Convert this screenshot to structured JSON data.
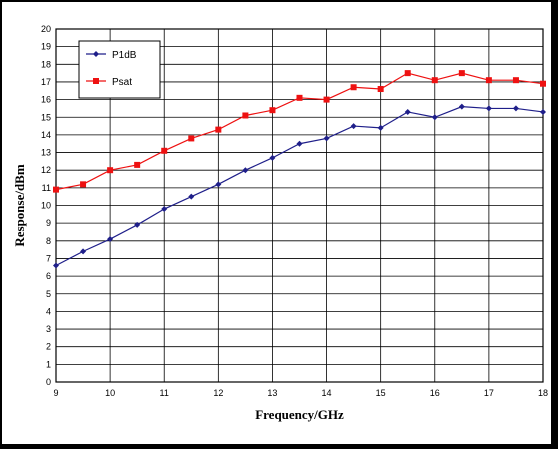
{
  "chart_data": {
    "type": "line",
    "title": "",
    "xlabel": "Frequency/GHz",
    "ylabel": "Response/dBm",
    "xlim": [
      9,
      18
    ],
    "ylim": [
      0,
      20
    ],
    "x_ticks": [
      "9",
      "10",
      "11",
      "12",
      "13",
      "14",
      "15",
      "16",
      "17",
      "18"
    ],
    "y_ticks": [
      "0",
      "1",
      "2",
      "3",
      "4",
      "5",
      "6",
      "7",
      "8",
      "9",
      "10",
      "11",
      "12",
      "13",
      "14",
      "15",
      "16",
      "17",
      "18",
      "19",
      "20"
    ],
    "grid": true,
    "legend_position": "top-left",
    "x": [
      9,
      9.5,
      10,
      10.5,
      11,
      11.5,
      12,
      12.5,
      13,
      13.5,
      14,
      14.5,
      15,
      15.5,
      16,
      16.5,
      17,
      17.5,
      18
    ],
    "series": [
      {
        "name": "P1dB",
        "color": "#1f1f8a",
        "marker": "diamond",
        "values": [
          6.6,
          7.4,
          8.1,
          8.9,
          9.8,
          10.5,
          11.2,
          12.0,
          12.7,
          13.5,
          13.8,
          14.5,
          14.4,
          15.3,
          15.0,
          15.6,
          15.5,
          15.5,
          15.3
        ]
      },
      {
        "name": "Psat",
        "color": "#ee1111",
        "marker": "square",
        "values": [
          10.9,
          11.2,
          12.0,
          12.3,
          13.1,
          13.8,
          14.3,
          15.1,
          15.4,
          16.1,
          16.0,
          16.7,
          16.6,
          17.5,
          17.1,
          17.5,
          17.1,
          17.1,
          16.9
        ]
      }
    ]
  }
}
